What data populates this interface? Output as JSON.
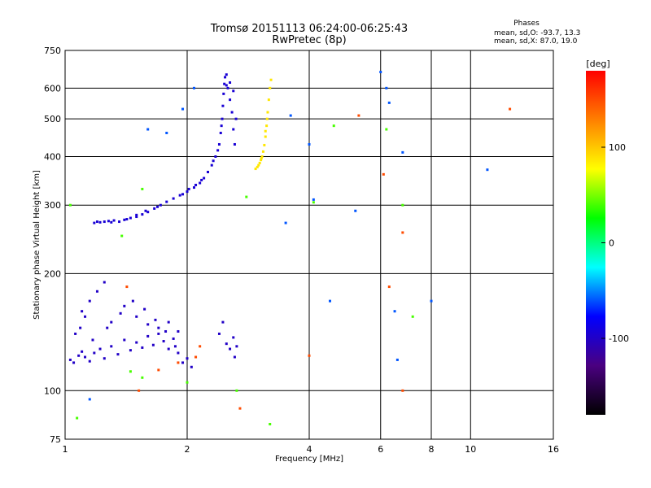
{
  "title_line1": "Tromsø 20151113 06:24:00-06:25:43",
  "title_line2": "RwPretec (8p)",
  "phases_note": {
    "heading": "Phases",
    "line1": "mean, sd,O: -93.7, 13.3",
    "line2": "mean, sd,X:  87.0, 19.0"
  },
  "chart_data": {
    "type": "scatter",
    "xlabel": "Frequency [MHz]",
    "ylabel": "Stationary phase Virtual Height [km]",
    "x_scale": "log",
    "y_scale": "log",
    "xlim": [
      1,
      16
    ],
    "ylim": [
      75,
      750
    ],
    "x_ticks": [
      1,
      2,
      4,
      6,
      8,
      10,
      16
    ],
    "x_tick_labels": [
      "1",
      "2",
      "4",
      "6",
      "8",
      "10",
      "16"
    ],
    "y_ticks": [
      75,
      100,
      200,
      300,
      400,
      500,
      600,
      750
    ],
    "y_tick_labels": [
      "75",
      "100",
      "200",
      "300",
      "400",
      "500",
      "600",
      "750"
    ],
    "grid": true,
    "color_encoding": "phase_deg",
    "colorbar": {
      "label": "[deg]",
      "range": [
        -180,
        180
      ],
      "ticks": [
        100,
        0,
        -100
      ],
      "tick_labels": [
        "100",
        "0",
        "-100"
      ],
      "stops": [
        "#000000",
        "#4a0080",
        "#0000ff",
        "#00ffff",
        "#00ff00",
        "#ffff00",
        "#ff8000",
        "#ff0000"
      ]
    },
    "series": [
      {
        "kind": "O-mode F trace",
        "phase_deg": -94,
        "points": [
          [
            1.18,
            270
          ],
          [
            1.2,
            272
          ],
          [
            1.22,
            271
          ],
          [
            1.25,
            272
          ],
          [
            1.28,
            273
          ],
          [
            1.32,
            274
          ],
          [
            1.36,
            272
          ],
          [
            1.4,
            275
          ],
          [
            1.45,
            278
          ],
          [
            1.5,
            280
          ],
          [
            1.55,
            284
          ],
          [
            1.6,
            288
          ],
          [
            1.66,
            294
          ],
          [
            1.72,
            300
          ],
          [
            1.78,
            306
          ],
          [
            1.85,
            312
          ],
          [
            1.92,
            318
          ],
          [
            2.0,
            325
          ],
          [
            2.08,
            333
          ],
          [
            2.15,
            342
          ],
          [
            2.2,
            352
          ],
          [
            2.25,
            365
          ],
          [
            2.3,
            380
          ],
          [
            2.35,
            400
          ],
          [
            2.4,
            430
          ],
          [
            2.42,
            460
          ],
          [
            2.44,
            500
          ],
          [
            2.45,
            540
          ],
          [
            2.46,
            580
          ],
          [
            2.47,
            615
          ],
          [
            2.48,
            640
          ],
          [
            2.5,
            650
          ],
          [
            2.52,
            600
          ],
          [
            2.55,
            560
          ],
          [
            2.58,
            520
          ],
          [
            2.6,
            470
          ],
          [
            2.62,
            430
          ],
          [
            1.95,
            320
          ],
          [
            2.02,
            330
          ],
          [
            2.1,
            338
          ],
          [
            1.5,
            283
          ],
          [
            1.42,
            276
          ],
          [
            1.3,
            271
          ],
          [
            1.58,
            290
          ],
          [
            1.69,
            297
          ],
          [
            2.17,
            348
          ],
          [
            2.32,
            390
          ],
          [
            2.38,
            415
          ],
          [
            2.43,
            480
          ],
          [
            2.5,
            610
          ],
          [
            2.55,
            620
          ],
          [
            2.6,
            590
          ],
          [
            2.64,
            500
          ]
        ]
      },
      {
        "kind": "X-mode F trace",
        "phase_deg": 87,
        "points": [
          [
            2.95,
            372
          ],
          [
            2.98,
            376
          ],
          [
            3.0,
            380
          ],
          [
            3.02,
            385
          ],
          [
            3.04,
            392
          ],
          [
            3.06,
            400
          ],
          [
            3.08,
            412
          ],
          [
            3.1,
            428
          ],
          [
            3.12,
            450
          ],
          [
            3.14,
            480
          ],
          [
            3.16,
            520
          ],
          [
            3.18,
            560
          ],
          [
            3.2,
            600
          ],
          [
            3.22,
            630
          ],
          [
            3.12,
            465
          ],
          [
            3.15,
            500
          ],
          [
            3.05,
            396
          ]
        ]
      },
      {
        "kind": "O-mode E region",
        "phase_deg": -100,
        "points": [
          [
            1.03,
            120
          ],
          [
            1.05,
            118
          ],
          [
            1.08,
            123
          ],
          [
            1.1,
            126
          ],
          [
            1.12,
            122
          ],
          [
            1.15,
            119
          ],
          [
            1.18,
            125
          ],
          [
            1.22,
            128
          ],
          [
            1.25,
            121
          ],
          [
            1.3,
            130
          ],
          [
            1.35,
            124
          ],
          [
            1.4,
            135
          ],
          [
            1.45,
            127
          ],
          [
            1.5,
            133
          ],
          [
            1.55,
            129
          ],
          [
            1.6,
            138
          ],
          [
            1.65,
            131
          ],
          [
            1.7,
            140
          ],
          [
            1.75,
            134
          ],
          [
            1.8,
            128
          ],
          [
            1.85,
            136
          ],
          [
            1.9,
            125
          ],
          [
            1.95,
            118
          ],
          [
            2.0,
            121
          ],
          [
            2.05,
            115
          ],
          [
            1.1,
            160
          ],
          [
            1.15,
            170
          ],
          [
            1.2,
            180
          ],
          [
            1.25,
            190
          ],
          [
            1.12,
            155
          ],
          [
            1.3,
            150
          ],
          [
            1.4,
            165
          ],
          [
            1.5,
            155
          ],
          [
            1.6,
            148
          ],
          [
            1.7,
            145
          ],
          [
            1.8,
            150
          ],
          [
            1.9,
            142
          ],
          [
            2.4,
            140
          ],
          [
            2.45,
            150
          ],
          [
            2.5,
            132
          ],
          [
            2.55,
            128
          ],
          [
            2.6,
            137
          ],
          [
            2.62,
            122
          ],
          [
            2.65,
            130
          ],
          [
            1.06,
            140
          ],
          [
            1.09,
            145
          ],
          [
            1.17,
            135
          ],
          [
            1.27,
            145
          ],
          [
            1.37,
            158
          ],
          [
            1.47,
            170
          ],
          [
            1.57,
            162
          ],
          [
            1.67,
            152
          ],
          [
            1.77,
            142
          ],
          [
            1.87,
            130
          ]
        ]
      },
      {
        "kind": "scattered echoes",
        "phase_deg": -60,
        "points": [
          [
            1.6,
            470
          ],
          [
            1.78,
            460
          ],
          [
            2.08,
            600
          ],
          [
            1.95,
            530
          ],
          [
            3.5,
            270
          ],
          [
            3.6,
            510
          ],
          [
            4.0,
            430
          ],
          [
            4.1,
            310
          ],
          [
            6.0,
            660
          ],
          [
            6.2,
            600
          ],
          [
            6.3,
            550
          ],
          [
            6.8,
            410
          ],
          [
            8.0,
            170
          ],
          [
            5.2,
            290
          ],
          [
            11.0,
            370
          ],
          [
            4.5,
            170
          ],
          [
            6.5,
            160
          ],
          [
            6.6,
            120
          ],
          [
            1.15,
            95
          ]
        ]
      },
      {
        "kind": "scattered echoes",
        "phase_deg": 40,
        "points": [
          [
            1.03,
            300
          ],
          [
            1.55,
            330
          ],
          [
            1.38,
            250
          ],
          [
            2.8,
            315
          ],
          [
            4.1,
            305
          ],
          [
            4.6,
            480
          ],
          [
            6.2,
            470
          ],
          [
            6.8,
            300
          ],
          [
            7.2,
            155
          ],
          [
            2.65,
            100
          ],
          [
            1.07,
            85
          ],
          [
            1.45,
            112
          ],
          [
            1.55,
            108
          ],
          [
            2.0,
            105
          ],
          [
            3.2,
            82
          ]
        ]
      },
      {
        "kind": "scattered echoes",
        "phase_deg": 150,
        "points": [
          [
            1.42,
            185
          ],
          [
            1.7,
            113
          ],
          [
            1.9,
            118
          ],
          [
            2.1,
            122
          ],
          [
            4.0,
            123
          ],
          [
            5.3,
            510
          ],
          [
            6.1,
            360
          ],
          [
            6.3,
            185
          ],
          [
            6.8,
            255
          ],
          [
            6.8,
            100
          ],
          [
            12.5,
            530
          ],
          [
            2.7,
            90
          ],
          [
            1.52,
            100
          ],
          [
            2.15,
            130
          ]
        ]
      }
    ]
  }
}
